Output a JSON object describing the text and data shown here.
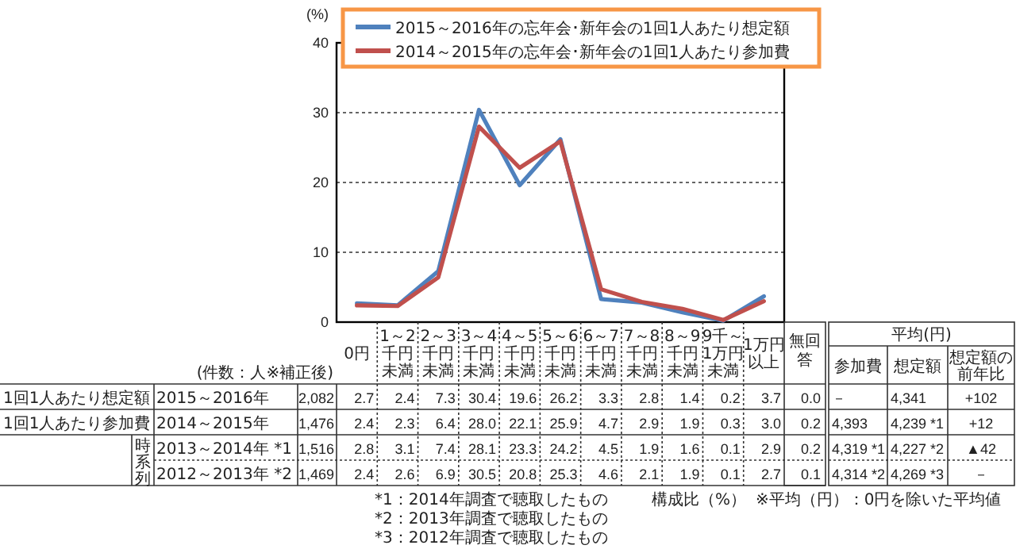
{
  "chart_data": {
    "type": "line",
    "ylabel": "(%)",
    "categories": [
      "0円",
      "1～2千円未満",
      "2～3千円未満",
      "3～4千円未満",
      "4～5千円未満",
      "5～6千円未満",
      "6～7千円未満",
      "7～8千円未満",
      "8～9千円未満",
      "9千～1万円未満",
      "1万円以上"
    ],
    "series": [
      {
        "name": "2015～2016年の忘年会･新年会の1回1人あたり想定額",
        "color": "#4f81bd",
        "values": [
          2.7,
          2.4,
          7.3,
          30.4,
          19.6,
          26.2,
          3.3,
          2.8,
          1.4,
          0.2,
          3.7
        ],
        "value_labels": [
          "2.7",
          "2.4",
          "7.3",
          "30.4",
          "19.6",
          "26.2",
          "3.3",
          "2.8",
          "1.4",
          "0.2",
          "3.7"
        ]
      },
      {
        "name": "2014～2015年の忘年会･新年会の1回1人あたり参加費",
        "color": "#c0504d",
        "values": [
          2.4,
          2.3,
          6.4,
          28.0,
          22.1,
          25.9,
          4.7,
          2.9,
          1.9,
          0.3,
          3.0
        ],
        "value_labels": [
          "2.4",
          "2.3",
          "6.4",
          "28.0",
          "22.1",
          "25.9",
          "4.7",
          "2.9",
          "1.9",
          "0.3",
          "3.0"
        ]
      }
    ],
    "ylim": [
      0,
      40
    ],
    "yticks": [
      0,
      10,
      20,
      30,
      40
    ],
    "grid": "y",
    "legend": "top",
    "annotations": [
      "(件数：人※補正後)",
      "無回答",
      "平均(円)",
      "参加費",
      "想定額",
      "想定額の前年比",
      "1回1人あたり想定額",
      "1回1人あたり参加費",
      "時系列",
      "2015～2016年",
      "2014～2015年",
      "2013～2014年 *1",
      "2012～2013年 *2",
      "2,082",
      "1,476",
      "1,516",
      "1,469",
      "0.0",
      "0.2",
      "0.2",
      "0.1",
      "－",
      "4,393",
      "4,319 *1",
      "4,314 *2",
      "4,341",
      "4,239 *1",
      "4,227 *2",
      "4,269 *3",
      "+102",
      "+12",
      "▲42",
      "－",
      "2.8",
      "3.1",
      "7.4",
      "28.1",
      "23.3",
      "24.2",
      "4.5",
      "1.9",
      "1.6",
      "0.1",
      "2.9",
      "2.4",
      "2.6",
      "6.9",
      "30.5",
      "20.8",
      "25.3",
      "4.6",
      "2.1",
      "1.9",
      "0.1",
      "2.7",
      "*1：2014年調査で聴取したもの",
      "*2：2013年調査で聴取したもの",
      "*3：2012年調査で聴取したもの",
      "構成比（%）",
      "※平均（円）：0円を除いた平均値"
    ]
  }
}
